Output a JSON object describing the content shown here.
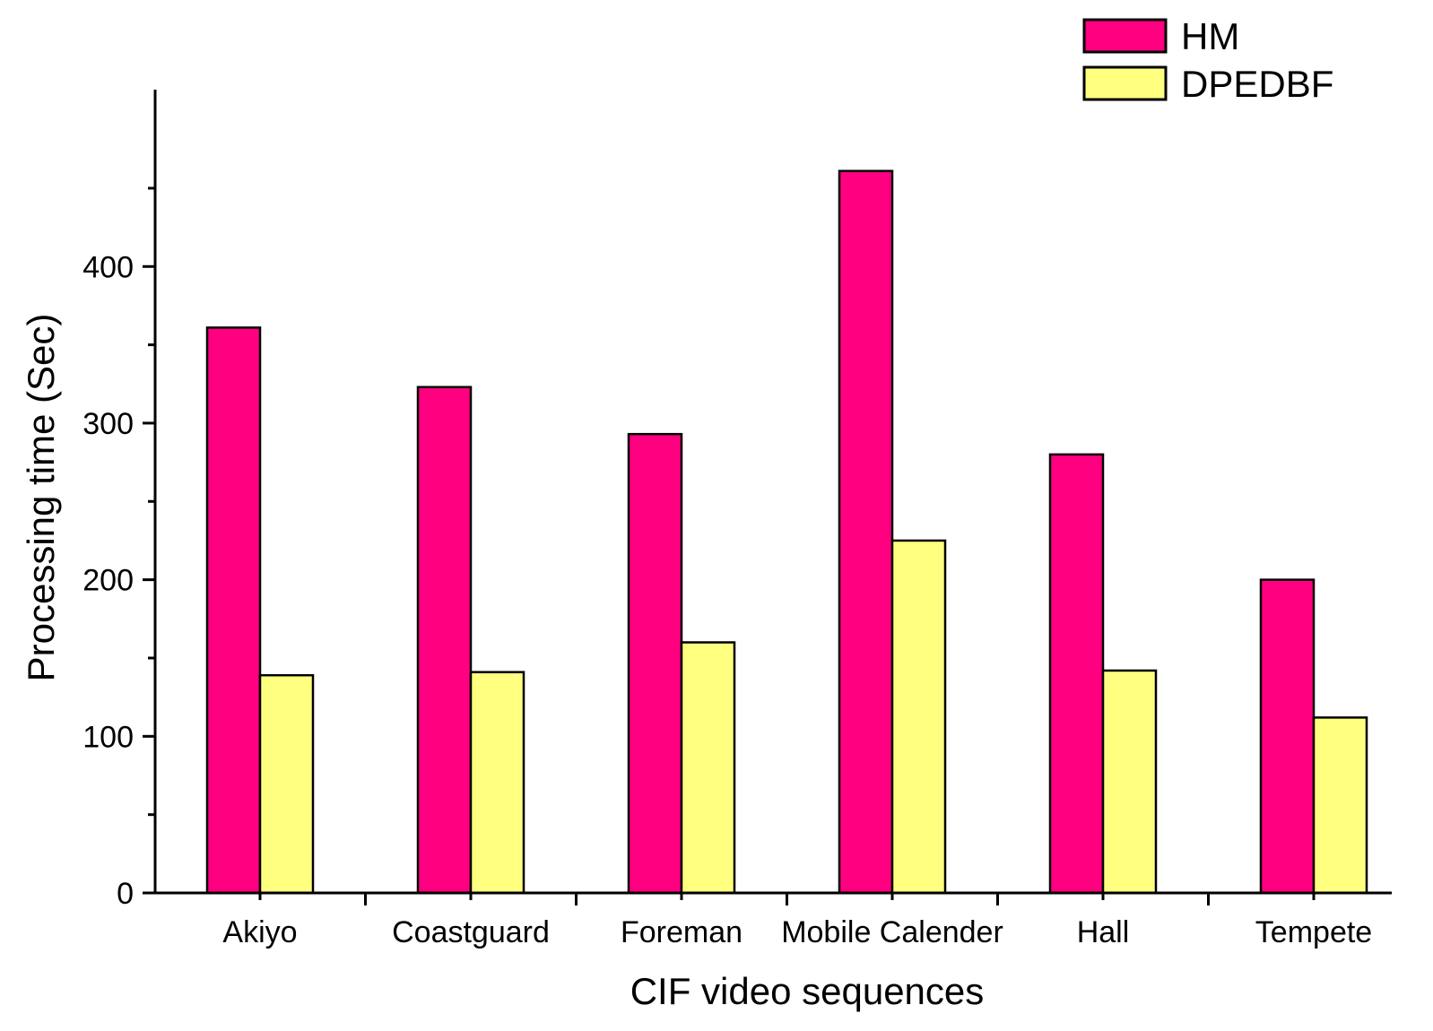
{
  "chart_data": {
    "type": "bar",
    "xlabel": "CIF video sequences",
    "ylabel": "Processing time (Sec)",
    "categories": [
      "Akiyo",
      "Coastguard",
      "Foreman",
      "Mobile Calender",
      "Hall",
      "Tempete"
    ],
    "series": [
      {
        "name": "HM",
        "color": "#ff0080",
        "values": [
          361,
          323,
          293,
          461,
          280,
          200
        ]
      },
      {
        "name": "DPEDBF",
        "color": "#ffff80",
        "values": [
          139,
          141,
          160,
          225,
          142,
          112
        ]
      }
    ],
    "ylim": [
      0,
      500
    ],
    "yticks": [
      0,
      100,
      200,
      300,
      400
    ],
    "yticks_minor": [
      50,
      150,
      250,
      350,
      450
    ],
    "grid": false,
    "legend_position": "top-right"
  }
}
